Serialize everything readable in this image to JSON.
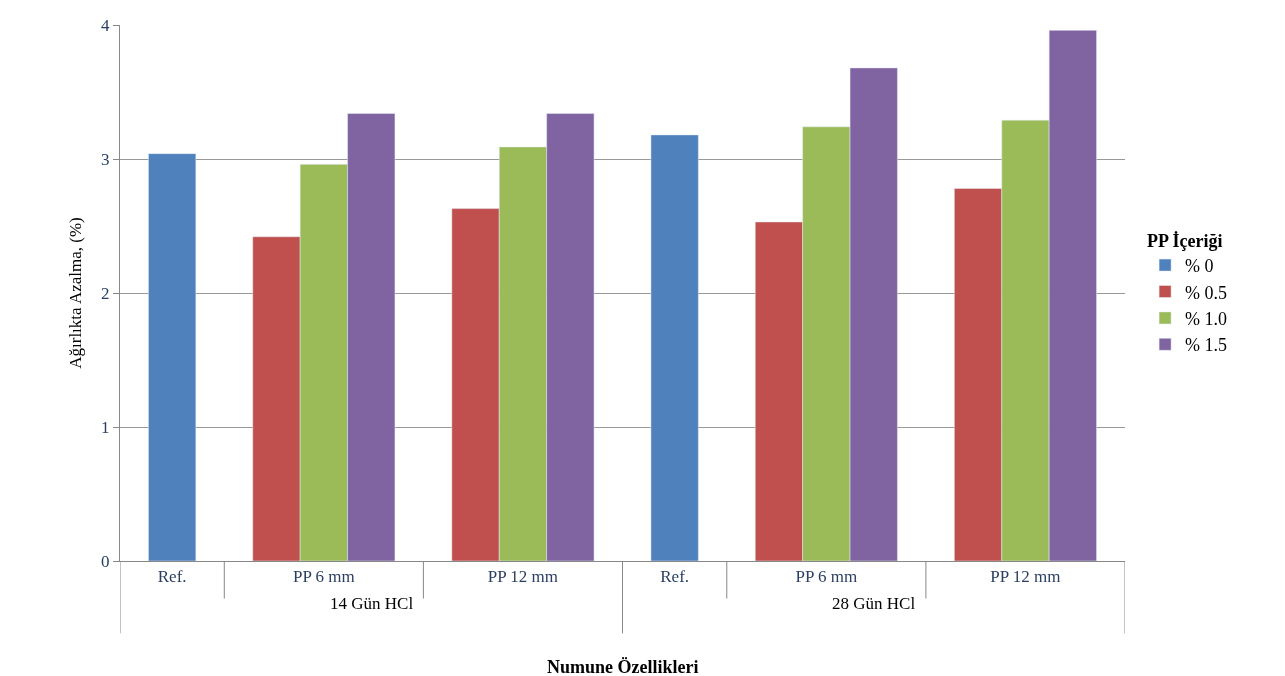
{
  "chart_data": {
    "type": "bar",
    "xlabel": "Numune Özellikleri",
    "ylabel": "Ağırlıkta Azalma, (%)",
    "legend_title": "PP İçeriği",
    "categories": [
      "Ref.",
      "PP 6 mm",
      "PP 12 mm",
      "Ref.",
      "PP 6 mm",
      "PP 12 mm"
    ],
    "annotations": [
      "14 Gün HCl",
      "28 Gün HCl"
    ],
    "series": [
      {
        "name": "% 0",
        "color": "#4f81bd",
        "values": [
          3.04,
          null,
          null,
          3.18,
          null,
          null
        ]
      },
      {
        "name": "% 0.5",
        "color": "#c0504d",
        "values": [
          null,
          2.42,
          2.63,
          null,
          2.53,
          2.78
        ]
      },
      {
        "name": "% 1.0",
        "color": "#9bbb59",
        "values": [
          null,
          2.96,
          3.09,
          null,
          3.24,
          3.29
        ]
      },
      {
        "name": "% 1.5",
        "color": "#8064a2",
        "values": [
          null,
          3.34,
          3.34,
          null,
          3.68,
          3.96
        ]
      }
    ],
    "ylim": [
      0,
      4
    ],
    "yticks": [
      0,
      1,
      2,
      3,
      4
    ],
    "grid": "y",
    "legend": "right"
  }
}
